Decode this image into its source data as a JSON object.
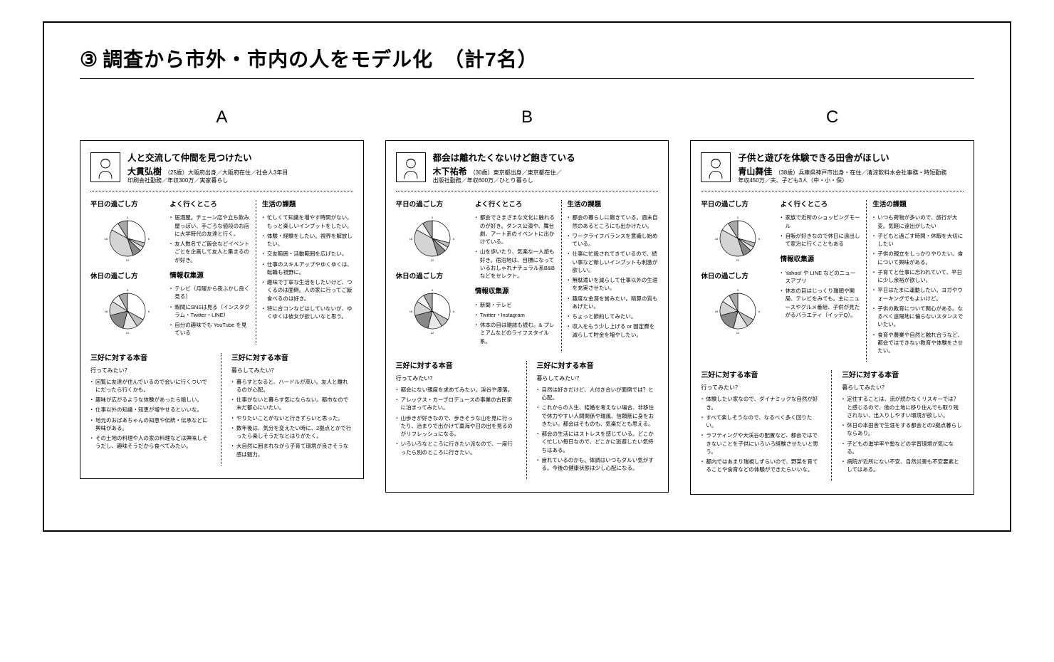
{
  "title_num": "③",
  "title_text": "調査から市外・市内の人をモデル化　（計7名）",
  "column_labels": [
    "A",
    "B",
    "C"
  ],
  "mid_headings": {
    "weekday": "平日の過ごし方",
    "holiday": "休日の過ごし方",
    "places": "よく行くところ",
    "info": "情報収集源",
    "issues": "生活の課題"
  },
  "bottom_heading": "三好に対する本音",
  "bottom_q_go": "行ってみたい？",
  "bottom_q_live": "暮らしてみたい？",
  "pie_colors": [
    "#ffffff",
    "#bdbdbd",
    "#e8e8e8",
    "#888888",
    "#d4d4d4",
    "#f4f4f4",
    "#a8a8a8"
  ],
  "pie_stroke": "#000",
  "personas": [
    {
      "tagline": "人と交流して仲間を見つけたい",
      "name": "大貫弘樹",
      "profile1": "（25歳）大阪府出身／大阪府在住／社会人3年目",
      "profile2": "印刷会社勤務／年収300万／実家暮らし",
      "places": [
        "居酒屋。チェーン店や立ち飲み屋っぽい、手ごろな値段のお店に大学時代の友達と行く。",
        "友人数名でご飯会などイベントごとを企画して友人と集まるのが好き。"
      ],
      "info": [
        "テレビ（月曜から夜ふかし良く見る）",
        "暇間にSNSは見る（インスタグラム・Twitter・LINE）",
        "自分の趣味でも YouTube を見ている"
      ],
      "issues": [
        "忙しくて知識を増やす時間がない。もっと楽しいインプットをしたい。",
        "体験・経験をしたい。視界を解放したい。",
        "交友範囲・活動範囲を広げたい。",
        "仕事のスキルアップやゆくゆくは、転職も視野に。",
        "趣味で丁寧な生活をしたいけど、つくるのは面倒。人の家に行ってご飯食べるのは好き。",
        "特に合コンなどはしていないが、ゆくゆくは彼女が欲しいなと思う。"
      ],
      "go": [
        "回覧に友達が住んでいるので会いに行くついでにだったら行くかも。",
        "趣味が広がるような体験があったら嬉しい。",
        "仕事以外の知識・知恵が増やせるといいな。",
        "地元のおばあちゃんの知恵や伝統・伝承などに興味がある。",
        "その土地の料理や人の家の料理などは興味しそうだし、趣味そうだから食べてみたい。"
      ],
      "live": [
        "暮らすとなると、ハードルが高い。友人と離れるのが心配。",
        "仕事がないと暮らす気にならない。都市なので末だ都心にいたい。",
        "やりたいことがないと行きずらいと思った。",
        "数年後は、気分を変えたい時に、2拠点とかで行ったら楽しそうだなとはりがたく。",
        "大自然に囲まれながら子育て環境が良さそうな感は魅力。"
      ]
    },
    {
      "tagline": "都会は離れたくないけど飽きている",
      "name": "木下祐希",
      "profile1": "（30歳）東京都出身／東京都在住／",
      "profile2": "出版社勤務／年収600万／ひとり暮らし",
      "places": [
        "都会でさまざまな文化に触れるのが好き。ダンス公演や、舞台劇、アート系のイベントに出かけている。",
        "山を歩いたり、気楽な一人旅も好き。宿泊地は、目標になっているおしゃれナチュラル系B&Bなどをセレクト。"
      ],
      "info": [
        "新聞・テレビ",
        "Twitter・Instagram",
        "休本の目は雑誌も読む。& プレミアムなどのライフスタイル系。"
      ],
      "issues": [
        "都会の暮らしに飽きている。週末自然のあるところにも出かけたい。",
        "ワークライフバランスを意識し始めている。",
        "仕事に忙殺されてきているので、続い事など新しいインプットも刺激が欲しい。",
        "無駄遣いを減らして仕事以外の生涯を充実させたい。",
        "趣度な金涯を営みたい。精算の質もあげたい。",
        "ちょっと節約してみたい。",
        "収入をもう少し上げる or 固定費を減らして貯金を増やしたい。"
      ],
      "go": [
        "都会にない親度を求めてみたい。渓谷や瀑落。",
        "アレックス・カーブロデュースの事業の古民家に泊まってみたい。",
        "山歩きが好きなので、歩きそうな山を見に行ったり、治まりで出かけて藁海や日の出を見るのがリフレッシュになる。",
        "いろいろなところに行きたい派なので、一度行ったら別のところに行きたい。"
      ],
      "live": [
        "自然は好きだけど、人付き合いが面倒では？と心配。",
        "これからの人生、結婚を考えない場合、非移住で休力やすい人間関係や瑞風、信頼筋に身をおきたい。都会はそものも、気楽だとも思える。",
        "都会の生活にはストレスを感じている。どこかく忙しい毎日なので、どこかに逃避したい気持ちはある。",
        "疲れているのかも。体調はいつもダルい気がする。今後の健康状態は少し心配になる。"
      ]
    },
    {
      "tagline": "子供と遊びを体験できる田舎がほしい",
      "name": "青山舞佳",
      "profile1": "（38歳）兵庫県神戸市出身・在住／清涼飲料水会社事務・時短勤務",
      "profile2": "年収450万／夫、子ども3人（中・小・保）",
      "places": [
        "家族で近所のショッピングモール",
        "自販が好きなので休日に遠出して家治に行くこともある"
      ],
      "info": [
        "Yahoo! や LINE などのニュースアプリ",
        "休本の目はじっくり瑞頭や開局、テレビをみても。主にニュースやグルメ番組、子供が見たがるバラエティ（イッテQ）。"
      ],
      "issues": [
        "いつも荷物が多いので、旅行が大変。気軽に遠出がしたい",
        "子どもと過ごす時間・休暇を大切にしたい",
        "子供の親立をしっかりやりたい。食について興味がある。",
        "子育てと仕事に忘われていて、平日に少し余裕が欲しい。",
        "平日はたまに運動したい。ヨガやウォーキングでもよいけど。",
        "子供の教育について関心がある。なるべく遠隔地に偏らないスタンスでいたい。",
        "食育や農業や自然と触れ合うなど、都会ではできない教育や体験をさせたい。"
      ],
      "go": [
        "体験したい家なので、ダイナミックな自然が好き。",
        "すべて楽しそうなので、なるべく多く回りたい。",
        "ラフティングや大渓谷の配置など、都会ではできないことを子供にいろいろ経験させたいと思う。",
        "都内ではあまり瑞視しずらいので、野菜を育てることや食育などの体験ができたらいいな。"
      ],
      "live": [
        "定住することは、流が続かなくリスキーでは？と感じるので、他の土地に移り住んでも取り残されない、出入りしやすい環境が欲しい。",
        "休日の本田舎で生涯をする都会との2拠点暮らしならあり。",
        "子どもの進学率や塾などの学習環境が気になる。",
        "病院が近所にない不安、自然災害も不安要素としてはある。"
      ]
    }
  ]
}
